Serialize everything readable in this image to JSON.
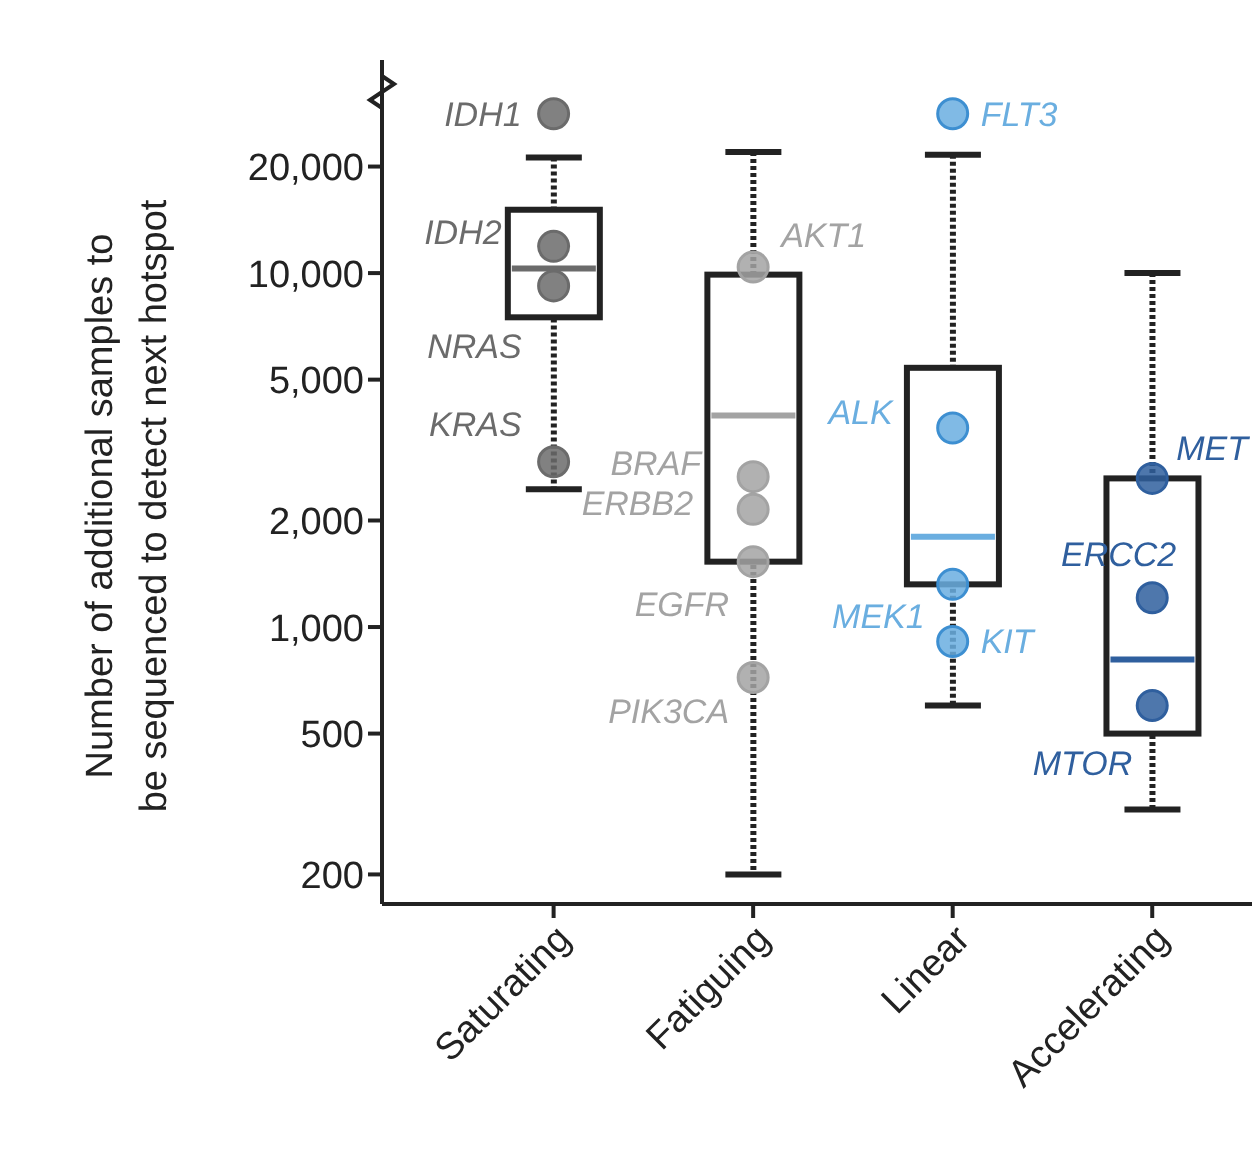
{
  "chart_data": {
    "type": "box",
    "ylabel": "Number of additional samples to be sequenced to detect next hotspot",
    "categories": [
      "Saturating",
      "Fatiguing",
      "Linear",
      "Accelerating"
    ],
    "boxes": [
      {
        "low": 2450,
        "q1": 7500,
        "median": 10300,
        "q3": 15100,
        "high": 21200
      },
      {
        "low": 200,
        "q1": 1530,
        "median": 3960,
        "q3": 9900,
        "high": 22000
      },
      {
        "low": 600,
        "q1": 1320,
        "median": 1800,
        "q3": 5400,
        "high": 21600
      },
      {
        "low": 305,
        "q1": 500,
        "median": 810,
        "q3": 2630,
        "high": 10000
      }
    ],
    "series": [
      {
        "type": "scatter",
        "color": "#6b6b6b",
        "x": [
          "Saturating",
          "Saturating",
          "Saturating",
          "Saturating"
        ],
        "values": [
          28200,
          11900,
          9200,
          2930
        ],
        "value_labels": [
          "IDH1",
          "IDH2",
          "NRAS",
          "KRAS"
        ]
      },
      {
        "type": "scatter",
        "color": "#a3a3a3",
        "x": [
          "Fatiguing",
          "Fatiguing",
          "Fatiguing",
          "Fatiguing",
          "Fatiguing"
        ],
        "values": [
          10400,
          2660,
          2150,
          1530,
          720
        ],
        "value_labels": [
          "AKT1",
          "BRAF",
          "ERBB2",
          "EGFR",
          "PIK3CA"
        ]
      },
      {
        "type": "scatter",
        "color": "#6aaee0",
        "x": [
          "Linear",
          "Linear",
          "Linear",
          "Linear"
        ],
        "values": [
          28200,
          3650,
          1320,
          910
        ],
        "value_labels": [
          "FLT3",
          "ALK",
          "MEK1",
          "KIT"
        ]
      },
      {
        "type": "scatter",
        "color": "#2f5f9e",
        "x": [
          "Accelerating",
          "Accelerating",
          "Accelerating"
        ],
        "values": [
          2630,
          1210,
          600
        ],
        "value_labels": [
          "MET",
          "ERCC2",
          "MTOR"
        ]
      }
    ],
    "log": "y",
    "ylim": [
      165,
      40000
    ],
    "yticks": [
      200,
      500,
      {
        "value": 1000,
        "label": "1,000"
      },
      {
        "value": 2000,
        "label": "2,000"
      },
      {
        "value": 5000,
        "label": "5,000"
      },
      {
        "value": 10000,
        "label": "10,000"
      },
      {
        "value": 20000,
        "label": "20,000"
      }
    ],
    "marker": "circle"
  }
}
